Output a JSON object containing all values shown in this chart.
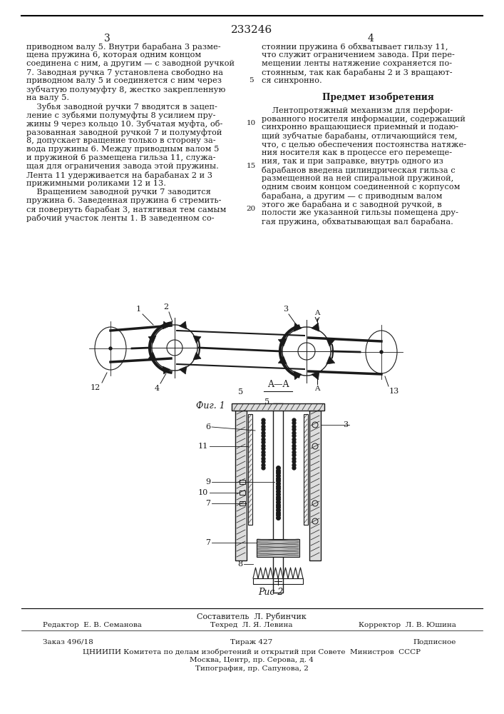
{
  "patent_number": "233246",
  "bg_color": "#ffffff",
  "text_color": "#1a1a1a",
  "col1_lines": [
    "приводном валу 5. Внутри барабана 3 разме-",
    "щена пружина 6, которая одним концом",
    "соединена с ним, а другим — с заводной ручкой",
    "7. Заводная ручка 7 установлена свободно на",
    "приводном валу 5 и соединяется с ним через",
    "зубчатую полумуфту 8, жестко закрепленную",
    "на валу 5.",
    "    Зубья заводной ручки 7 вводятся в зацеп-",
    "ление с зубьями полумуфты 8 усилием пру-",
    "жины 9 через кольцо 10. Зубчатая муфта, об-",
    "разованная заводной ручкой 7 и полумуфтой",
    "8, допускает вращение только в сторону за-",
    "вода пружины 6. Между приводным валом 5",
    "и пружиной 6 размещена гильза 11, служа-",
    "щая для ограничения завода этой пружины.",
    "Лента 11 удерживается на барабанах 2 и 3",
    "прижимными роликами 12 и 13.",
    "    Вращением заводной ручки 7 заводится",
    "пружина 6. Заведенная пружина 6 стремить-",
    "ся повернуть барабан 3, натягивая тем самым",
    "рабочий участок ленты 1. В заведенном со-"
  ],
  "col2_lines_part1": [
    "стоянии пружина 6 обхватывает гильзу 11,",
    "что служит ограничением завода. При пере-",
    "мещении ленты натяжение сохраняется по-",
    "стоянным, так как барабаны 2 и 3 вращают-",
    "ся синхронно."
  ],
  "col2_header": "Предмет изобретения",
  "col2_lines_part2": [
    "    Лентопротяжный механизм для перфори-",
    "рованного носителя информации, содержащий",
    "синхронно вращающиеся приемный и подаю-",
    "щий зубчатые барабаны, отличающийся тем,",
    "что, с целью обеспечения постоянства натяже-",
    "ния носителя как в процессе его перемеще-",
    "ния, так и при заправке, внутрь одного из",
    "барабанов введена цилиндрическая гильза с",
    "размещенной на ней спиральной пружиной,",
    "одним своим концом соединенной с корпусом",
    "барабана, а другим — с приводным валом",
    "этого же барабана и с заводной ручкой, в",
    "полости же указанной гильзы помещена дру-",
    "гая пружина, обхватывающая вал барабана."
  ],
  "line_nums": {
    "4": "5",
    "9": "10",
    "14": "15",
    "19": "20"
  },
  "footer_lines": [
    "Составитель  Л. Рубинчик",
    "Редактор  Е. В. Семанова",
    "Техред  Л. Я. Левина",
    "Корректор  Л. В. Юшина",
    "Заказ 496/18",
    "Тираж 427",
    "Подписное",
    "ЦНИИПИ Комитета по делам изобретений и открытий при Совете  Министров  СССР",
    "Москва, Центр, пр. Серова, д. 4",
    "Типография, пр. Сапунова, 2"
  ]
}
